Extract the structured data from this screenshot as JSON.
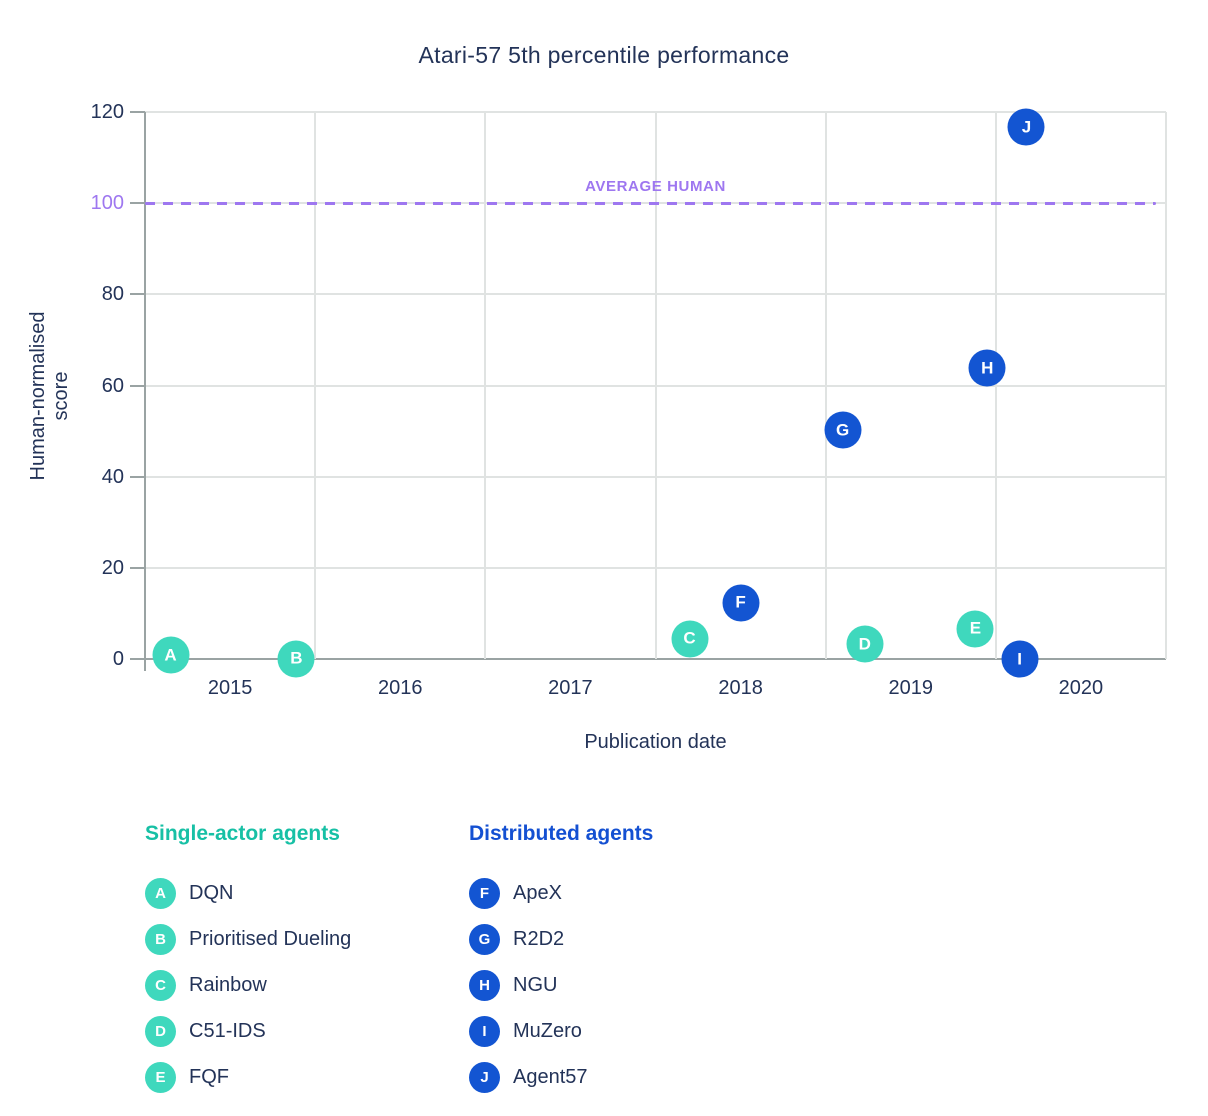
{
  "colors": {
    "navy": "#233358",
    "teal": "#3fd8bd",
    "blue": "#1355d2",
    "purple": "#9e77f0",
    "grid": "#e0e3e2",
    "axis": "#9aa3a3",
    "background": "#ffffff"
  },
  "chart_data": {
    "type": "scatter",
    "title": "Atari-57 5th percentile performance",
    "xlabel": "Publication date",
    "ylabel": "Human-normalised score",
    "xlim": [
      2014.5,
      2020.5
    ],
    "ylim": [
      0,
      120
    ],
    "x_ticks": [
      2015,
      2016,
      2017,
      2018,
      2019,
      2020
    ],
    "y_ticks": [
      0,
      20,
      40,
      60,
      80,
      100,
      120
    ],
    "x_gridlines": [
      2015.5,
      2016.5,
      2017.5,
      2018.5,
      2019.5,
      2020.5
    ],
    "grid": true,
    "legend_position": "bottom",
    "reference_line": {
      "value": 100,
      "label": "AVERAGE HUMAN",
      "color": "#9e77f0"
    },
    "series": [
      {
        "name": "Single-actor agents",
        "color": "#3fd8bd",
        "header_color": "#17c0a5",
        "points": [
          {
            "key": "A",
            "label": "DQN",
            "x": 2014.65,
            "y": 0.8
          },
          {
            "key": "B",
            "label": "Prioritised Dueling",
            "x": 2015.39,
            "y": 0.1
          },
          {
            "key": "C",
            "label": "Rainbow",
            "x": 2017.7,
            "y": 4.4
          },
          {
            "key": "D",
            "label": "C51-IDS",
            "x": 2018.73,
            "y": 3.2
          },
          {
            "key": "E",
            "label": "FQF",
            "x": 2019.38,
            "y": 6.6
          }
        ]
      },
      {
        "name": "Distributed agents",
        "color": "#1355d2",
        "header_color": "#1450d2",
        "points": [
          {
            "key": "F",
            "label": "ApeX",
            "x": 2018.0,
            "y": 12.3
          },
          {
            "key": "G",
            "label": "R2D2",
            "x": 2018.6,
            "y": 50.2
          },
          {
            "key": "H",
            "label": "NGU",
            "x": 2019.45,
            "y": 63.8
          },
          {
            "key": "I",
            "label": "MuZero",
            "x": 2019.64,
            "y": 0.0
          },
          {
            "key": "J",
            "label": "Agent57",
            "x": 2019.68,
            "y": 116.7
          }
        ]
      }
    ]
  }
}
